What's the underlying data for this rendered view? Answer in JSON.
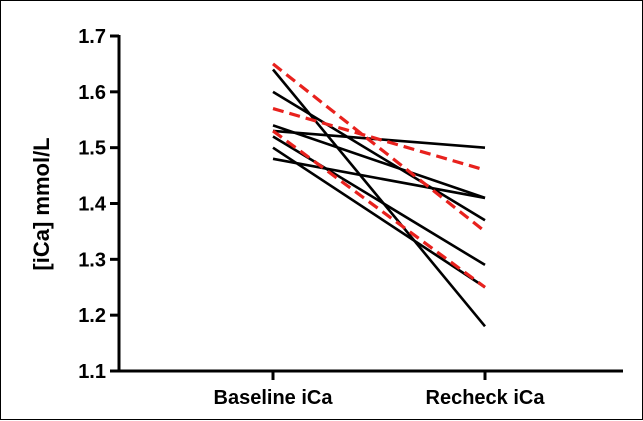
{
  "chart_data": {
    "type": "line",
    "title": "",
    "xlabel": "",
    "ylabel": "[iCa] mmol/L",
    "categories": [
      "Baseline iCa",
      "Recheck iCa"
    ],
    "ylim": [
      1.1,
      1.7
    ],
    "yticks": [
      "1.1",
      "1.2",
      "1.3",
      "1.4",
      "1.5",
      "1.6",
      "1.7"
    ],
    "grid": false,
    "legend": "none",
    "colors": {
      "solid": "#000000",
      "dashed": "#e8211d"
    },
    "series": [
      {
        "values": [
          1.64,
          1.18
        ],
        "style": "solid"
      },
      {
        "values": [
          1.6,
          1.37
        ],
        "style": "solid"
      },
      {
        "values": [
          1.54,
          1.41
        ],
        "style": "solid"
      },
      {
        "values": [
          1.53,
          1.5
        ],
        "style": "solid"
      },
      {
        "values": [
          1.52,
          1.29
        ],
        "style": "solid"
      },
      {
        "values": [
          1.5,
          1.25
        ],
        "style": "solid"
      },
      {
        "values": [
          1.48,
          1.41
        ],
        "style": "solid"
      },
      {
        "values": [
          1.65,
          1.35
        ],
        "style": "dashed"
      },
      {
        "values": [
          1.57,
          1.46
        ],
        "style": "dashed"
      },
      {
        "values": [
          1.53,
          1.25
        ],
        "style": "dashed"
      }
    ]
  }
}
